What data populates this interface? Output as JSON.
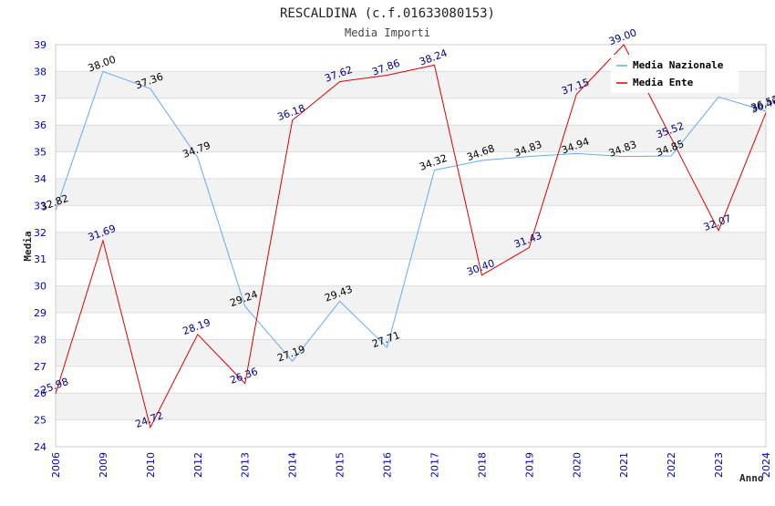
{
  "chart_data": {
    "type": "line",
    "title": "RESCALDINA (c.f.01633080153)",
    "subtitle": "Media Importi",
    "xlabel": "Anno",
    "ylabel": "Media",
    "ylim": [
      24,
      39
    ],
    "yticks": [
      "24",
      "25",
      "26",
      "27",
      "28",
      "29",
      "30",
      "31",
      "32",
      "33",
      "34",
      "35",
      "36",
      "37",
      "38",
      "39"
    ],
    "categories": [
      "2006",
      "2009",
      "2010",
      "2012",
      "2013",
      "2014",
      "2015",
      "2016",
      "2017",
      "2018",
      "2019",
      "2020",
      "2021",
      "2022",
      "2023",
      "2024"
    ],
    "series": [
      {
        "name": "Media Nazionale",
        "color": "#66aaee",
        "values": [
          32.82,
          38.0,
          37.36,
          34.79,
          29.24,
          27.19,
          29.43,
          27.71,
          34.32,
          34.68,
          34.83,
          34.94,
          34.83,
          34.85,
          37.05,
          36.52
        ],
        "labels": [
          "32.82",
          "38.00",
          "37.36",
          "34.79",
          "29.24",
          "27.19",
          "29.43",
          "27.71",
          "34.32",
          "34.68",
          "34.83",
          "34.94",
          "34.83",
          "34.85",
          "",
          "36.52"
        ]
      },
      {
        "name": "Media Ente",
        "color": "#dd0000",
        "values": [
          25.98,
          31.69,
          24.72,
          28.19,
          26.36,
          36.18,
          37.62,
          37.86,
          38.24,
          30.4,
          31.43,
          37.15,
          39.0,
          35.52,
          32.07,
          36.46
        ],
        "labels": [
          "25.98",
          "31.69",
          "24.72",
          "28.19",
          "26.36",
          "36.18",
          "37.62",
          "37.86",
          "38.24",
          "30.40",
          "31.43",
          "37.15",
          "39.00",
          "35.52",
          "32.07",
          "36.46"
        ]
      }
    ],
    "legend_position": "top-right"
  }
}
